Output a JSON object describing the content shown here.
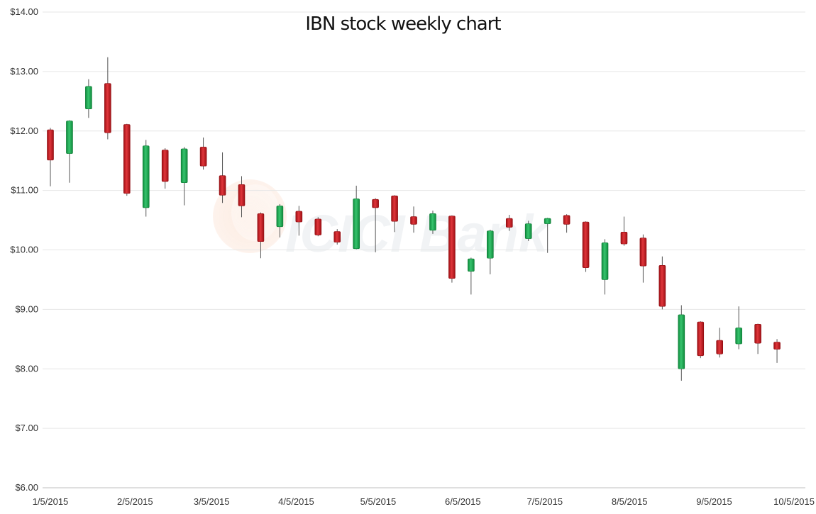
{
  "chart_data": {
    "type": "candlestick",
    "title": "IBN stock weekly chart",
    "xlabel": "",
    "ylabel": "",
    "ylim": [
      6,
      14
    ],
    "y_ticks": [
      "$14.00",
      "$13.00",
      "$12.00",
      "$11.00",
      "$10.00",
      "$9.00",
      "$8.00",
      "$7.00",
      "$6.00"
    ],
    "x_ticks": [
      "1/5/2015",
      "2/5/2015",
      "3/5/2015",
      "4/5/2015",
      "5/5/2015",
      "6/5/2015",
      "7/5/2015",
      "8/5/2015",
      "9/5/2015",
      "10/5/2015"
    ],
    "grid": "horizontal",
    "colors": {
      "up": "#1aa64f",
      "down": "#c0161c",
      "grid": "#e6e6e6",
      "axis": "#bfbfbf"
    },
    "watermark": "ICICI Bank",
    "candles": [
      {
        "date": "1/5/2015",
        "open": 12.02,
        "high": 12.05,
        "low": 11.07,
        "close": 11.51
      },
      {
        "date": "1/12/2015",
        "open": 11.62,
        "high": 12.18,
        "low": 11.13,
        "close": 12.17
      },
      {
        "date": "1/19/2015",
        "open": 12.37,
        "high": 12.87,
        "low": 12.22,
        "close": 12.75
      },
      {
        "date": "1/26/2015",
        "open": 12.8,
        "high": 13.24,
        "low": 11.86,
        "close": 11.97
      },
      {
        "date": "2/2/2015",
        "open": 12.11,
        "high": 12.12,
        "low": 10.91,
        "close": 10.95
      },
      {
        "date": "2/9/2015",
        "open": 10.71,
        "high": 11.85,
        "low": 10.56,
        "close": 11.75
      },
      {
        "date": "2/16/2015",
        "open": 11.68,
        "high": 11.71,
        "low": 11.03,
        "close": 11.15
      },
      {
        "date": "2/23/2015",
        "open": 11.13,
        "high": 11.73,
        "low": 10.75,
        "close": 11.7
      },
      {
        "date": "3/2/2015",
        "open": 11.73,
        "high": 11.89,
        "low": 11.35,
        "close": 11.41
      },
      {
        "date": "3/9/2015",
        "open": 11.25,
        "high": 11.64,
        "low": 10.79,
        "close": 10.92
      },
      {
        "date": "3/16/2015",
        "open": 11.1,
        "high": 11.24,
        "low": 10.55,
        "close": 10.74
      },
      {
        "date": "3/23/2015",
        "open": 10.61,
        "high": 10.63,
        "low": 9.86,
        "close": 10.14
      },
      {
        "date": "3/30/2015",
        "open": 10.39,
        "high": 10.77,
        "low": 10.21,
        "close": 10.74
      },
      {
        "date": "4/6/2015",
        "open": 10.65,
        "high": 10.74,
        "low": 10.24,
        "close": 10.47
      },
      {
        "date": "4/13/2015",
        "open": 10.52,
        "high": 10.55,
        "low": 10.23,
        "close": 10.25
      },
      {
        "date": "4/20/2015",
        "open": 10.31,
        "high": 10.35,
        "low": 10.09,
        "close": 10.13
      },
      {
        "date": "4/27/2015",
        "open": 10.02,
        "high": 11.08,
        "low": 10.01,
        "close": 10.86
      },
      {
        "date": "5/4/2015",
        "open": 10.85,
        "high": 10.87,
        "low": 9.96,
        "close": 10.71
      },
      {
        "date": "5/11/2015",
        "open": 10.91,
        "high": 10.92,
        "low": 10.3,
        "close": 10.48
      },
      {
        "date": "5/18/2015",
        "open": 10.56,
        "high": 10.73,
        "low": 10.29,
        "close": 10.43
      },
      {
        "date": "5/25/2015",
        "open": 10.33,
        "high": 10.66,
        "low": 10.27,
        "close": 10.61
      },
      {
        "date": "6/1/2015",
        "open": 10.57,
        "high": 10.58,
        "low": 9.45,
        "close": 9.52
      },
      {
        "date": "6/8/2015",
        "open": 9.64,
        "high": 9.87,
        "low": 9.25,
        "close": 9.85
      },
      {
        "date": "6/15/2015",
        "open": 9.86,
        "high": 10.34,
        "low": 9.59,
        "close": 10.32
      },
      {
        "date": "6/22/2015",
        "open": 10.53,
        "high": 10.59,
        "low": 10.32,
        "close": 10.38
      },
      {
        "date": "6/29/2015",
        "open": 10.19,
        "high": 10.49,
        "low": 10.15,
        "close": 10.44
      },
      {
        "date": "7/6/2015",
        "open": 10.44,
        "high": 10.54,
        "low": 9.95,
        "close": 10.53
      },
      {
        "date": "7/13/2015",
        "open": 10.58,
        "high": 10.6,
        "low": 10.29,
        "close": 10.43
      },
      {
        "date": "7/20/2015",
        "open": 10.47,
        "high": 10.48,
        "low": 9.63,
        "close": 9.7
      },
      {
        "date": "7/27/2015",
        "open": 9.5,
        "high": 10.18,
        "low": 9.25,
        "close": 10.12
      },
      {
        "date": "8/3/2015",
        "open": 10.3,
        "high": 10.56,
        "low": 10.07,
        "close": 10.1
      },
      {
        "date": "8/10/2015",
        "open": 10.2,
        "high": 10.26,
        "low": 9.45,
        "close": 9.73
      },
      {
        "date": "8/17/2015",
        "open": 9.74,
        "high": 9.89,
        "low": 9.0,
        "close": 9.05
      },
      {
        "date": "8/24/2015",
        "open": 8.0,
        "high": 9.07,
        "low": 7.8,
        "close": 8.91
      },
      {
        "date": "8/31/2015",
        "open": 8.79,
        "high": 8.8,
        "low": 8.18,
        "close": 8.22
      },
      {
        "date": "9/7/2015",
        "open": 8.48,
        "high": 8.69,
        "low": 8.19,
        "close": 8.25
      },
      {
        "date": "9/14/2015",
        "open": 8.42,
        "high": 9.05,
        "low": 8.33,
        "close": 8.69
      },
      {
        "date": "9/21/2015",
        "open": 8.75,
        "high": 8.76,
        "low": 8.25,
        "close": 8.43
      },
      {
        "date": "9/28/2015",
        "open": 8.45,
        "high": 8.5,
        "low": 8.1,
        "close": 8.33
      }
    ]
  }
}
